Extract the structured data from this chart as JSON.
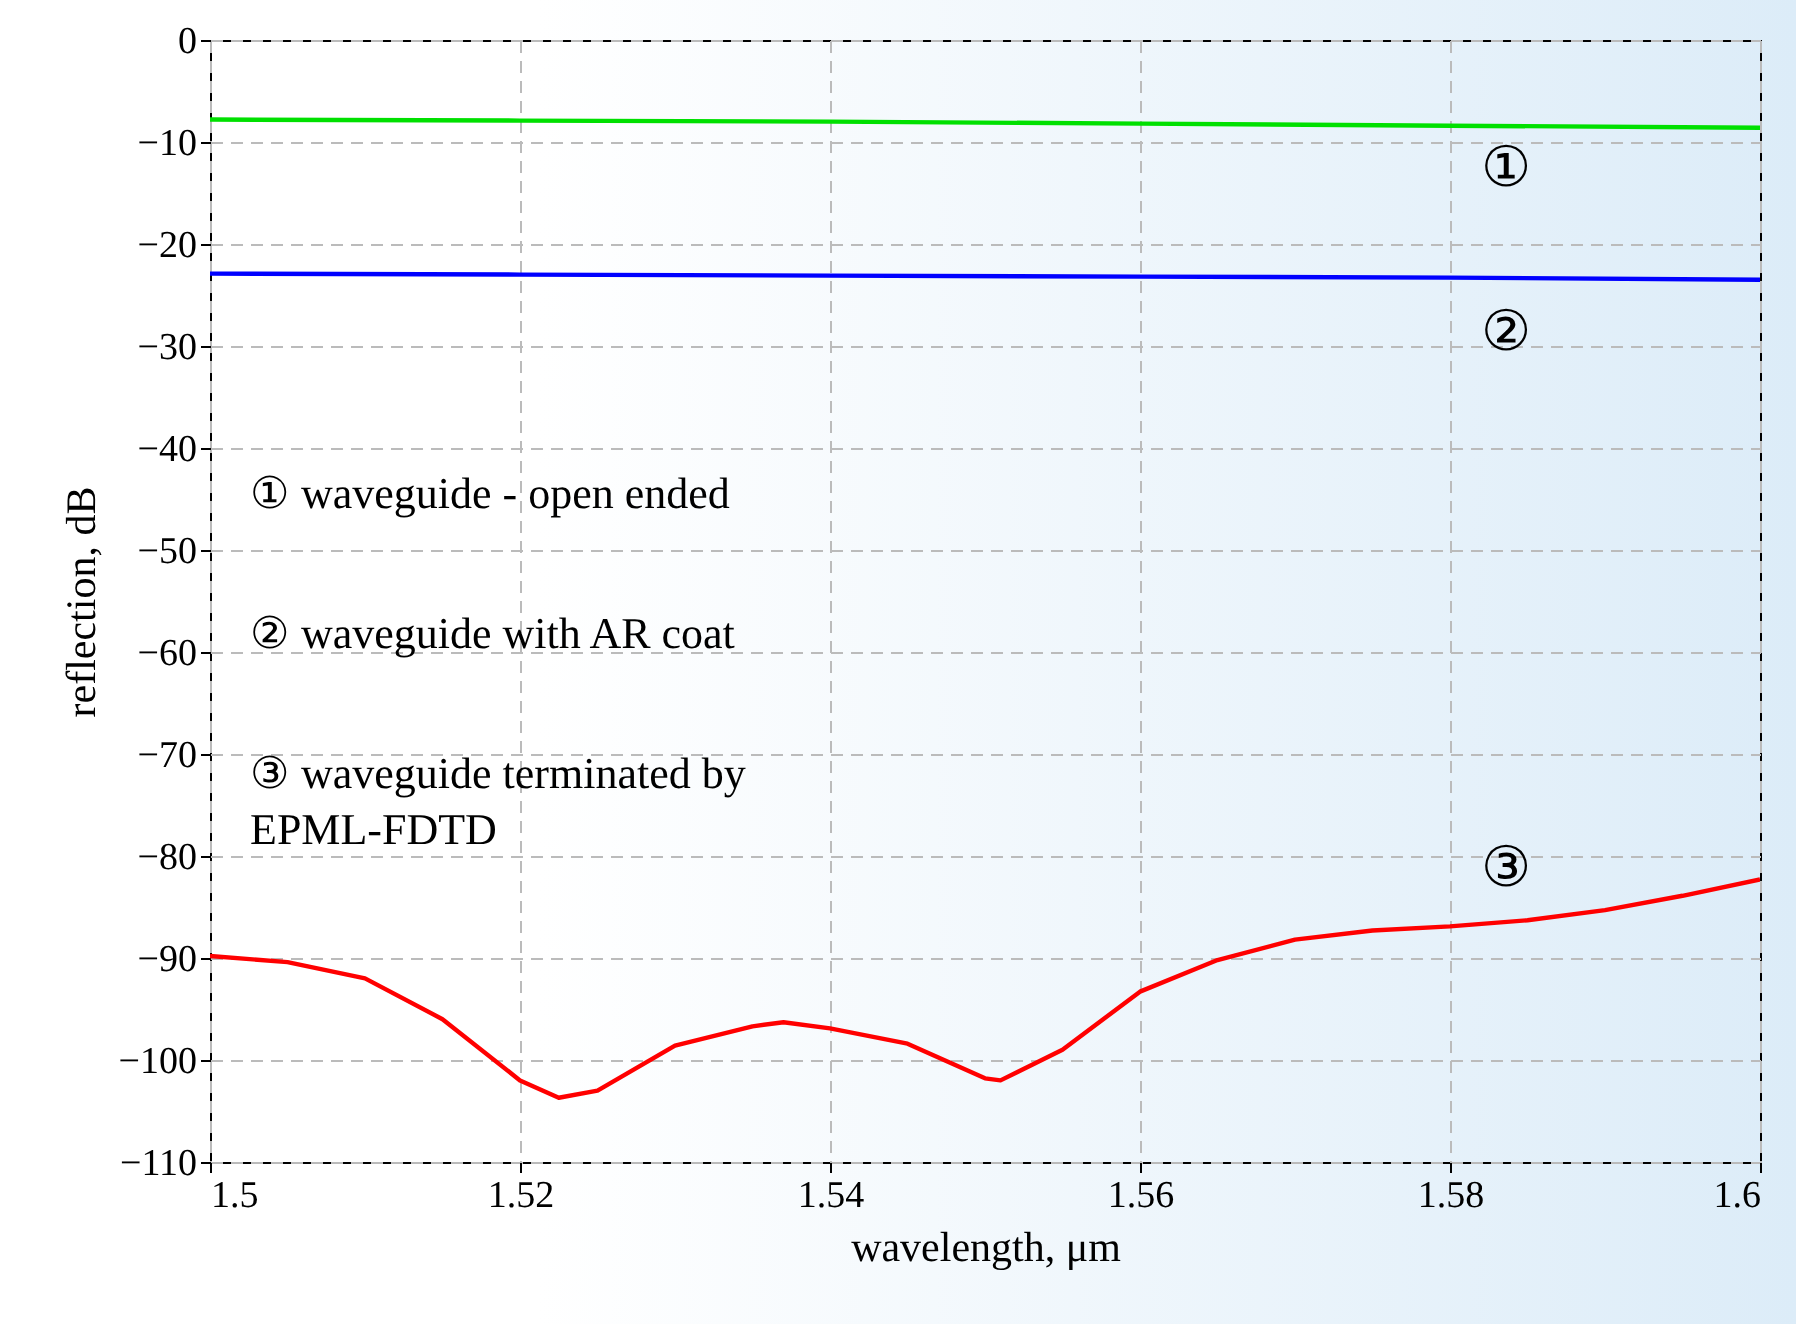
{
  "chart_data": {
    "type": "line",
    "xlabel": "wavelength, μm",
    "ylabel": "reflection, dB",
    "xlim": [
      1.5,
      1.6
    ],
    "xticks": [
      1.5,
      1.52,
      1.54,
      1.56,
      1.58,
      {
        "value": 1.6,
        "label": "1.6"
      }
    ],
    "ylim": [
      -110,
      0
    ],
    "yticks": [
      -110,
      -100,
      -90,
      -80,
      -70,
      -60,
      -50,
      -40,
      -30,
      -20,
      -10,
      0
    ],
    "grid": true,
    "line_style": "solid",
    "marker": "none",
    "series": [
      {
        "color": "#00e000",
        "x": [
          1.5,
          1.52,
          1.54,
          1.56,
          1.58,
          1.6
        ],
        "values": [
          -7.8,
          -7.9,
          -8.0,
          -8.2,
          -8.4,
          -8.6
        ]
      },
      {
        "color": "#0000ff",
        "x": [
          1.5,
          1.52,
          1.54,
          1.56,
          1.58,
          1.6
        ],
        "values": [
          -22.9,
          -23.0,
          -23.1,
          -23.2,
          -23.3,
          -23.5
        ]
      },
      {
        "color": "#ff0000",
        "x": [
          1.5,
          1.505,
          1.51,
          1.515,
          1.52,
          1.5225,
          1.525,
          1.53,
          1.535,
          1.537,
          1.54,
          1.545,
          1.55,
          1.551,
          1.555,
          1.56,
          1.565,
          1.57,
          1.575,
          1.58,
          1.585,
          1.59,
          1.595,
          1.6
        ],
        "values": [
          -89.8,
          -90.4,
          -92.0,
          -96.0,
          -102.0,
          -103.7,
          -103.0,
          -98.6,
          -96.7,
          -96.3,
          -96.9,
          -98.4,
          -101.8,
          -102.0,
          -99.0,
          -93.3,
          -90.2,
          -88.2,
          -87.3,
          -86.9,
          -86.3,
          -85.3,
          -83.9,
          -82.3
        ]
      }
    ],
    "annotations": [
      "①",
      "②",
      "③",
      "①    waveguide - open ended",
      "②    waveguide with AR coat",
      "③    waveguide terminated by\n       EPML-FDTD"
    ]
  }
}
